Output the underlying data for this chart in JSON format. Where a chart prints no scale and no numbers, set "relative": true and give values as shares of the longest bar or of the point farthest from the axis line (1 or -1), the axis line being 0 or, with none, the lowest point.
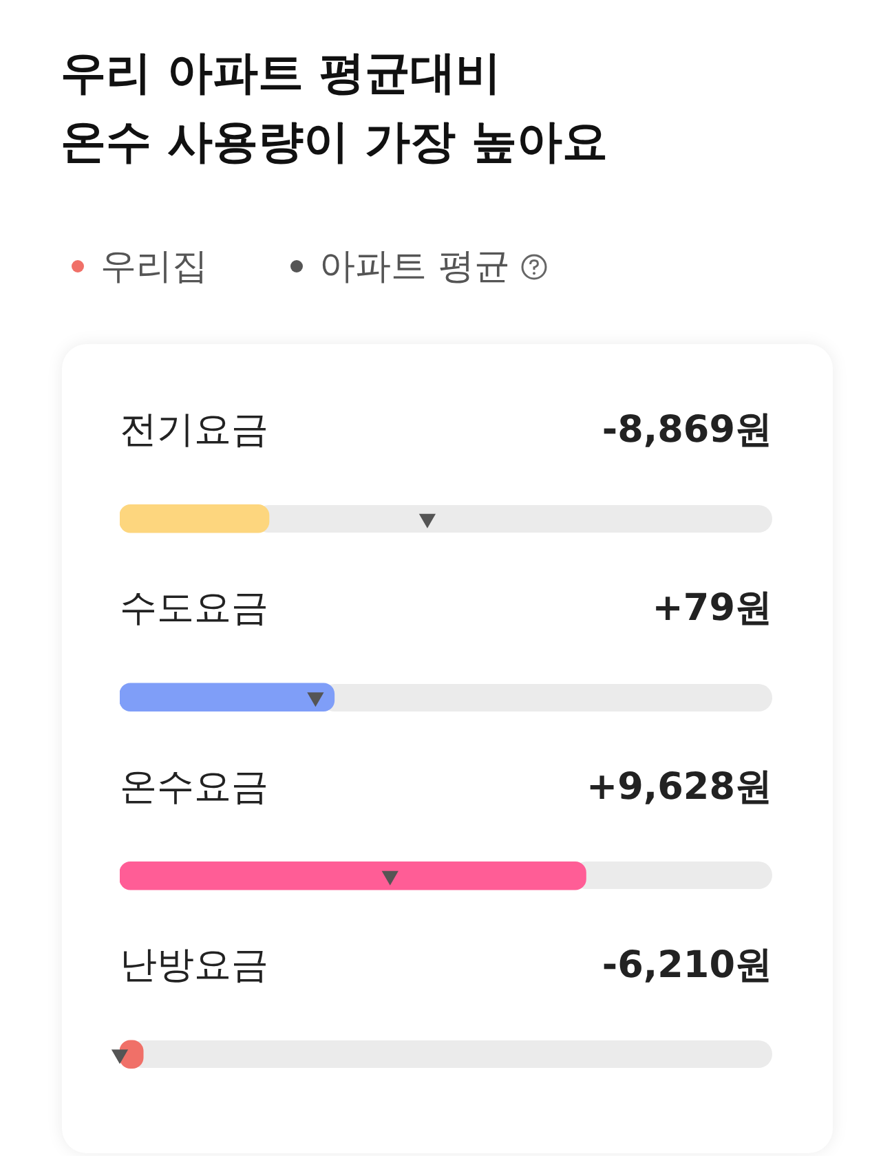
{
  "chart_data": {
    "type": "bar",
    "orientation": "horizontal",
    "relative": true,
    "title": "우리 아파트 평균대비\n온수 사용량이 가장 높아요",
    "legend": "top",
    "categories": [
      "전기요금",
      "수도요금",
      "온수요금",
      "난방요금"
    ],
    "series": [
      {
        "name": "우리집",
        "colors": [
          "#fdd67e",
          "#7f9ef8",
          "#ff5d96",
          "#f07068"
        ],
        "color": "#f07068",
        "values": [
          0.32,
          0.46,
          1,
          0.05
        ]
      },
      {
        "name": "아파트 평균",
        "type": "scatter",
        "marker": "triangle",
        "color": "#555555",
        "values": [
          0.66,
          0.42,
          0.58,
          0
        ]
      }
    ],
    "annotations": [
      "-8,869원",
      "+79원",
      "+9,628원",
      "-6,210원"
    ]
  }
}
